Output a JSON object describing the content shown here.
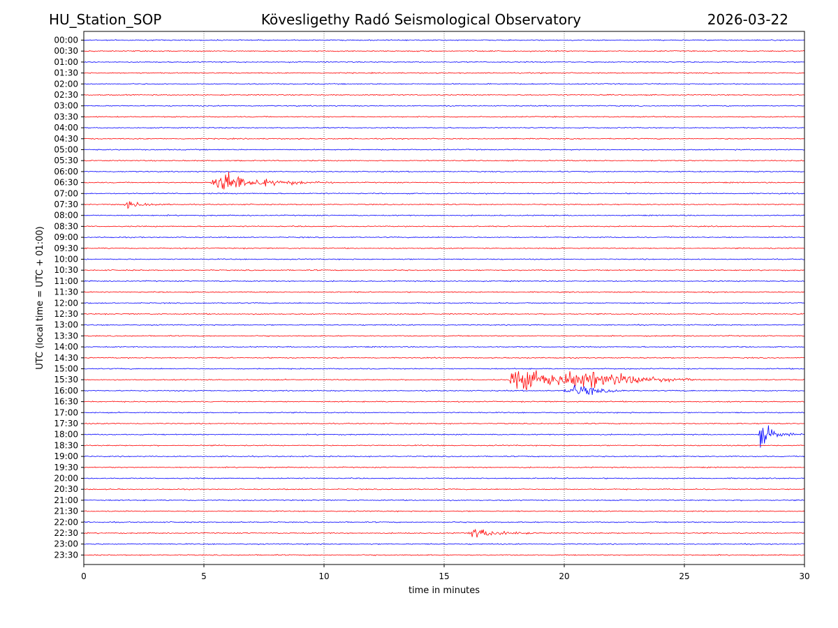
{
  "header": {
    "station": "HU_Station_SOP",
    "observatory": "Kövesligethy Radó Seismological Observatory",
    "date": "2026-03-22"
  },
  "chart_data": {
    "type": "line",
    "title": "Kövesligethy Radó Seismological Observatory",
    "xlabel": "time in minutes",
    "ylabel": "UTC (local time = UTC + 01:00)",
    "xlim": [
      0,
      30
    ],
    "x_ticks": [
      0,
      5,
      10,
      15,
      20,
      25,
      30
    ],
    "grid": "vertical dotted at x ticks",
    "trace_colors": [
      "#0000ff",
      "#ff0000"
    ],
    "rows": [
      "00:00",
      "00:30",
      "01:00",
      "01:30",
      "02:00",
      "02:30",
      "03:00",
      "03:30",
      "04:00",
      "04:30",
      "05:00",
      "05:30",
      "06:00",
      "06:30",
      "07:00",
      "07:30",
      "08:00",
      "08:30",
      "09:00",
      "09:30",
      "10:00",
      "10:30",
      "11:00",
      "11:30",
      "12:00",
      "12:30",
      "13:00",
      "13:30",
      "14:00",
      "14:30",
      "15:00",
      "15:30",
      "16:00",
      "16:30",
      "17:00",
      "17:30",
      "18:00",
      "18:30",
      "19:00",
      "19:30",
      "20:00",
      "20:30",
      "21:00",
      "21:30",
      "22:00",
      "22:30",
      "23:00",
      "23:30"
    ],
    "events": [
      {
        "row": "06:30",
        "start_min": 5.3,
        "peak_min": 5.7,
        "end_min": 10.5,
        "amplitude": 34
      },
      {
        "row": "07:30",
        "start_min": 1.7,
        "peak_min": 1.9,
        "end_min": 3.6,
        "amplitude": 12
      },
      {
        "row": "15:30",
        "start_min": 17.7,
        "peak_min": 18.2,
        "end_min": 25.5,
        "amplitude": 34
      },
      {
        "row": "15:30",
        "start_min": 20.2,
        "peak_min": 20.7,
        "end_min": 25.5,
        "amplitude": 28
      },
      {
        "row": "16:00",
        "start_min": 20.0,
        "peak_min": 20.6,
        "end_min": 23.0,
        "amplitude": 18
      },
      {
        "row": "18:00",
        "start_min": 28.1,
        "peak_min": 28.2,
        "end_min": 30.0,
        "amplitude": 30
      },
      {
        "row": "22:30",
        "start_min": 16.0,
        "peak_min": 16.3,
        "end_min": 19.5,
        "amplitude": 14
      }
    ]
  }
}
